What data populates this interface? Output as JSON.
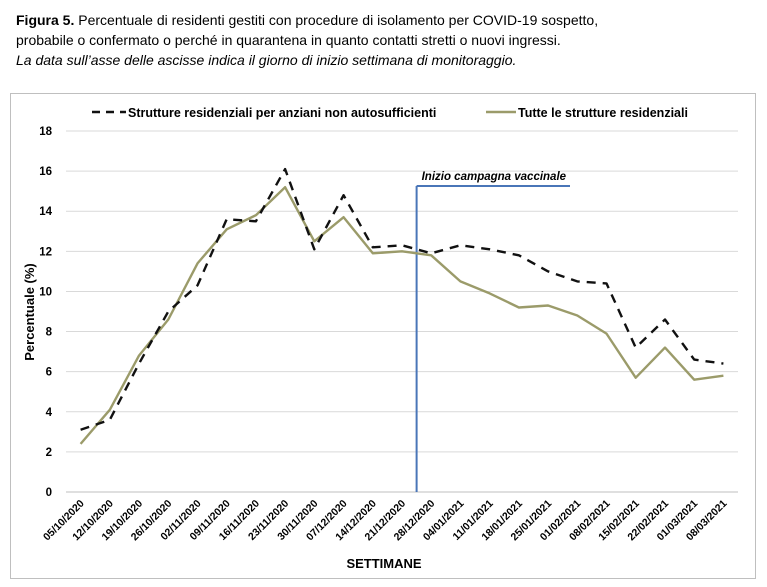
{
  "caption": {
    "figure_label": "Figura 5.",
    "line1": "Percentuale di residenti gestiti con procedure di isolamento per COVID-19 sospetto,",
    "line2": "probabile o confermato o perché in quarantena in quanto contatti stretti o nuovi ingressi.",
    "note": "La data sull’asse delle ascisse indica il giorno di inizio settimana di monitoraggio."
  },
  "chart_data": {
    "type": "line",
    "title": "",
    "xlabel": "SETTIMANE",
    "ylabel": "Percentuale (%)",
    "ylim": [
      0,
      18
    ],
    "yticks": [
      0,
      2,
      4,
      6,
      8,
      10,
      12,
      14,
      16,
      18
    ],
    "grid": "horizontal",
    "legend_position": "top",
    "categories": [
      "05/10/2020",
      "12/10/2020",
      "19/10/2020",
      "26/10/2020",
      "02/11/2020",
      "09/11/2020",
      "16/11/2020",
      "23/11/2020",
      "30/11/2020",
      "07/12/2020",
      "14/12/2020",
      "21/12/2020",
      "28/12/2020",
      "04/01/2021",
      "11/01/2021",
      "18/01/2021",
      "25/01/2021",
      "01/02/2021",
      "08/02/2021",
      "15/02/2021",
      "22/02/2021",
      "01/03/2021",
      "08/03/2021"
    ],
    "series": [
      {
        "name": "Strutture residenziali per anziani non autosufficienti",
        "style": "dashed",
        "color": "#111111",
        "values": [
          3.1,
          3.6,
          6.4,
          9.0,
          10.3,
          13.6,
          13.5,
          16.1,
          12.1,
          14.8,
          12.2,
          12.3,
          11.9,
          12.3,
          12.1,
          11.8,
          11.0,
          10.5,
          10.4,
          7.2,
          8.6,
          6.6,
          6.4
        ]
      },
      {
        "name": "Tutte le strutture residenziali",
        "style": "solid",
        "color": "#9b9b6a",
        "values": [
          2.4,
          4.1,
          6.8,
          8.6,
          11.4,
          13.1,
          13.8,
          15.2,
          12.5,
          13.7,
          11.9,
          12.0,
          11.8,
          10.5,
          9.9,
          9.2,
          9.3,
          8.8,
          7.9,
          5.7,
          7.2,
          5.6,
          5.8
        ]
      }
    ],
    "annotation": {
      "label": "Inizio campagna vaccinale",
      "at_category": "21/12/2020",
      "color": "#4a76b8"
    }
  }
}
